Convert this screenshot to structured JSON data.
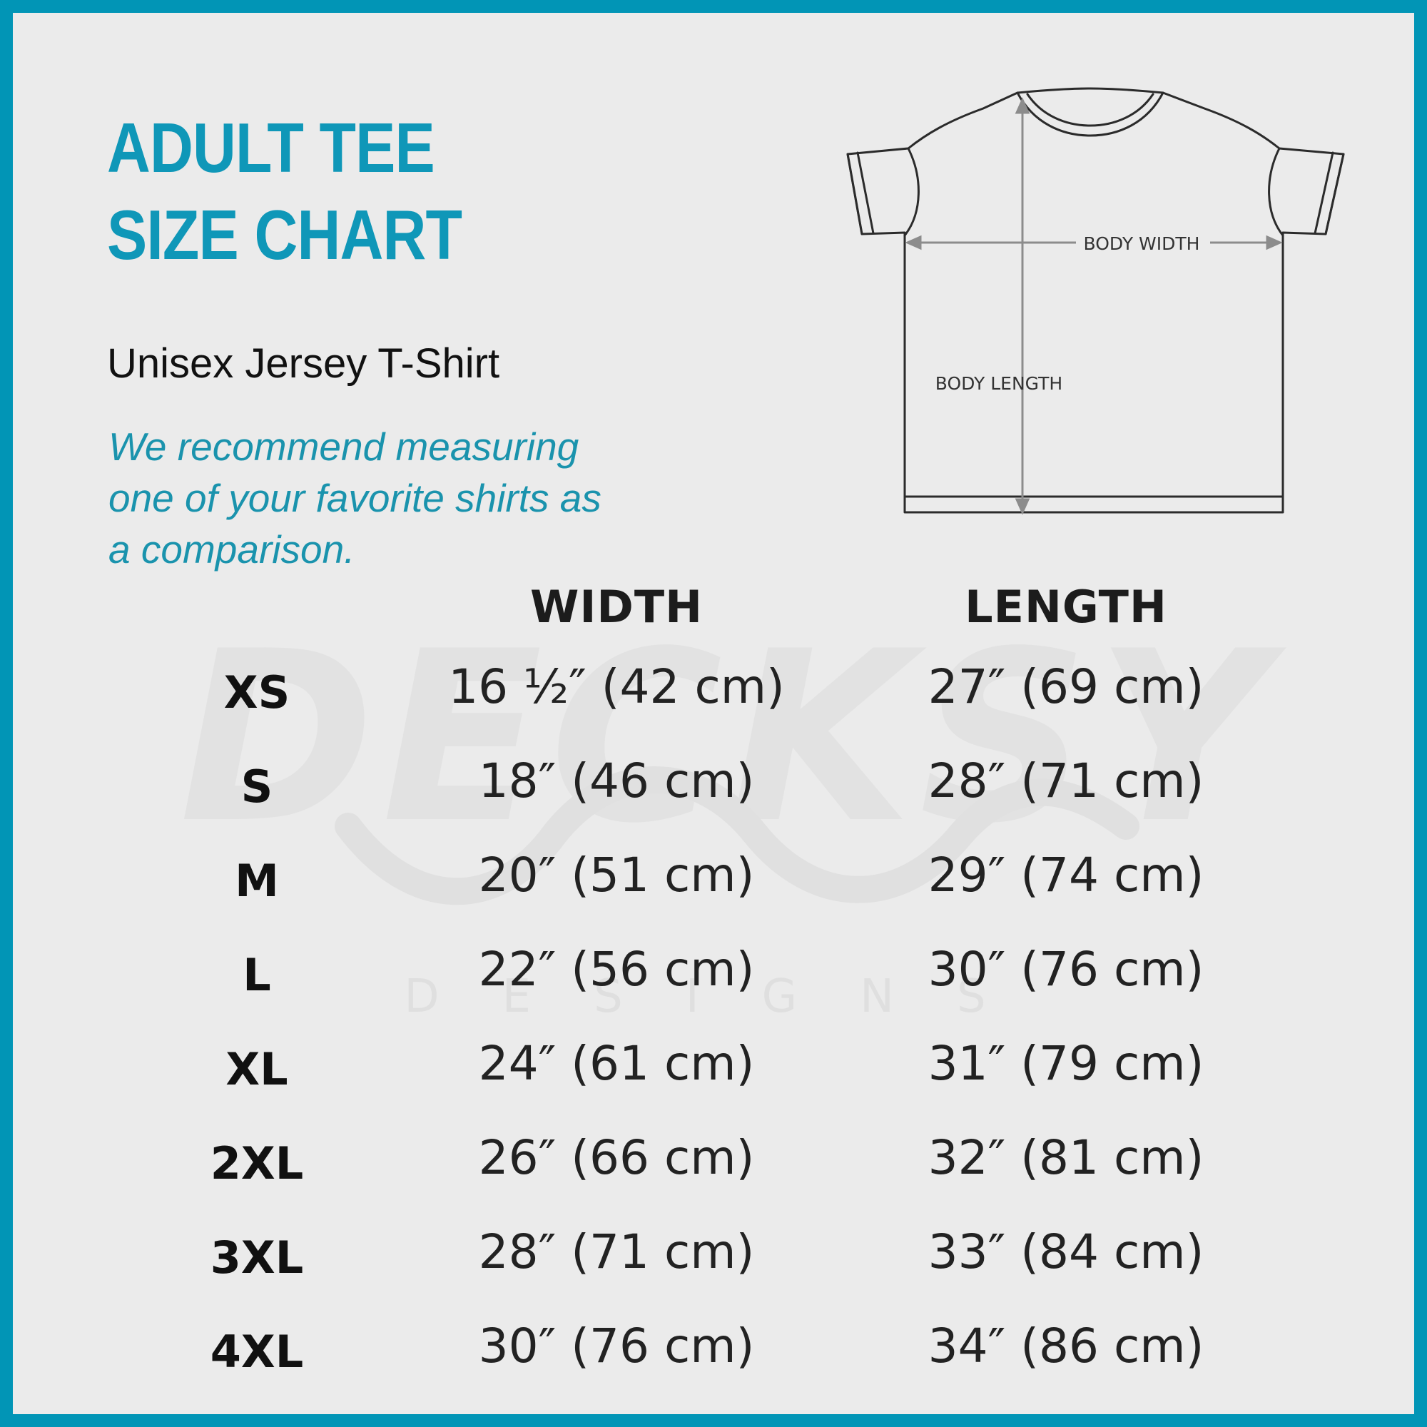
{
  "title": {
    "line1": "ADULT TEE",
    "line2": "SIZE CHART"
  },
  "subtitle": "Unisex Jersey T-Shirt",
  "note": {
    "line1": "We recommend measuring",
    "line2": "one of your favorite shirts as",
    "line3": "a comparison."
  },
  "diagram": {
    "body_width_label": "BODY WIDTH",
    "body_length_label": "BODY LENGTH"
  },
  "watermark": {
    "brand": "DECKSY",
    "sub": "DESIGNS"
  },
  "table": {
    "headers": {
      "width": "WIDTH",
      "length": "LENGTH"
    },
    "rows": [
      {
        "size": "XS",
        "width": "16 ½″ (42 cm)",
        "length": "27″ (69 cm)"
      },
      {
        "size": "S",
        "width": "18″ (46 cm)",
        "length": "28″ (71 cm)"
      },
      {
        "size": "M",
        "width": "20″ (51 cm)",
        "length": "29″ (74 cm)"
      },
      {
        "size": "L",
        "width": "22″ (56 cm)",
        "length": "30″ (76 cm)"
      },
      {
        "size": "XL",
        "width": "24″ (61 cm)",
        "length": "31″ (79 cm)"
      },
      {
        "size": "2XL",
        "width": "26″ (66 cm)",
        "length": "32″ (81 cm)"
      },
      {
        "size": "3XL",
        "width": "28″ (71 cm)",
        "length": "33″ (84 cm)"
      },
      {
        "size": "4XL",
        "width": "30″ (76 cm)",
        "length": "34″ (86 cm)"
      }
    ]
  },
  "colors": {
    "border": "#0195b6",
    "accent": "#0f97b8",
    "background": "#ebebeb"
  }
}
